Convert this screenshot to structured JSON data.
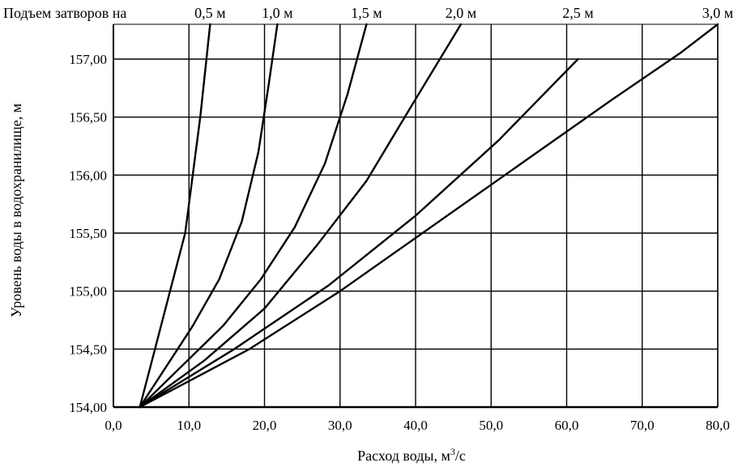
{
  "chart_data": {
    "type": "line",
    "title": "Подъем затворов на",
    "xlabel_prefix": "Расход воды, м",
    "xlabel_sup": "3",
    "xlabel_suffix": "/с",
    "ylabel": "Уровень воды в водохранилище, м",
    "xlim": [
      0,
      80
    ],
    "ylim": [
      154.0,
      157.3
    ],
    "grid": true,
    "x_ticks": [
      0,
      10,
      20,
      30,
      40,
      50,
      60,
      70,
      80
    ],
    "x_tick_labels": [
      "0,0",
      "10,0",
      "20,0",
      "30,0",
      "40,0",
      "50,0",
      "60,0",
      "70,0",
      "80,0"
    ],
    "y_ticks": [
      154.0,
      154.5,
      155.0,
      155.5,
      156.0,
      156.5,
      157.0
    ],
    "y_tick_labels": [
      "154,00",
      "154,50",
      "155,00",
      "155,50",
      "156,00",
      "156,50",
      "157,00"
    ],
    "series": [
      {
        "name": "0,5 м",
        "x": [
          3.5,
          5.5,
          7.5,
          9.5,
          10.5,
          11.5,
          12.8
        ],
        "y": [
          154.0,
          154.5,
          155.0,
          155.5,
          156.0,
          156.5,
          157.3
        ]
      },
      {
        "name": "1,0 м",
        "x": [
          3.5,
          7.0,
          10.5,
          14.0,
          17.0,
          19.2,
          20.6,
          21.7
        ],
        "y": [
          154.0,
          154.35,
          154.7,
          155.1,
          155.6,
          156.2,
          156.8,
          157.3
        ]
      },
      {
        "name": "1,5 м",
        "x": [
          3.5,
          9.0,
          14.5,
          19.5,
          24.0,
          28.0,
          31.0,
          33.5
        ],
        "y": [
          154.0,
          154.35,
          154.7,
          155.1,
          155.55,
          156.1,
          156.7,
          157.3
        ]
      },
      {
        "name": "2,0 м",
        "x": [
          3.5,
          12.0,
          20.0,
          27.0,
          33.5,
          39.5,
          46.0
        ],
        "y": [
          154.0,
          154.4,
          154.85,
          155.4,
          155.95,
          156.6,
          157.3
        ]
      },
      {
        "name": "2,5 м",
        "x": [
          3.5,
          16.0,
          28.5,
          40.0,
          51.0,
          61.5
        ],
        "y": [
          154.0,
          154.5,
          155.05,
          155.65,
          156.3,
          157.0
        ]
      },
      {
        "name": "3,0 м",
        "x": [
          3.5,
          18.0,
          30.0,
          42.0,
          54.0,
          66.0,
          75.0,
          80.0
        ],
        "y": [
          154.0,
          154.5,
          155.0,
          155.55,
          156.1,
          156.65,
          157.05,
          157.3
        ]
      }
    ],
    "legend_labels": [
      "0,5 м",
      "1,0 м",
      "1,5 м",
      "2,0 м",
      "2,5 м",
      "3,0 м"
    ]
  }
}
